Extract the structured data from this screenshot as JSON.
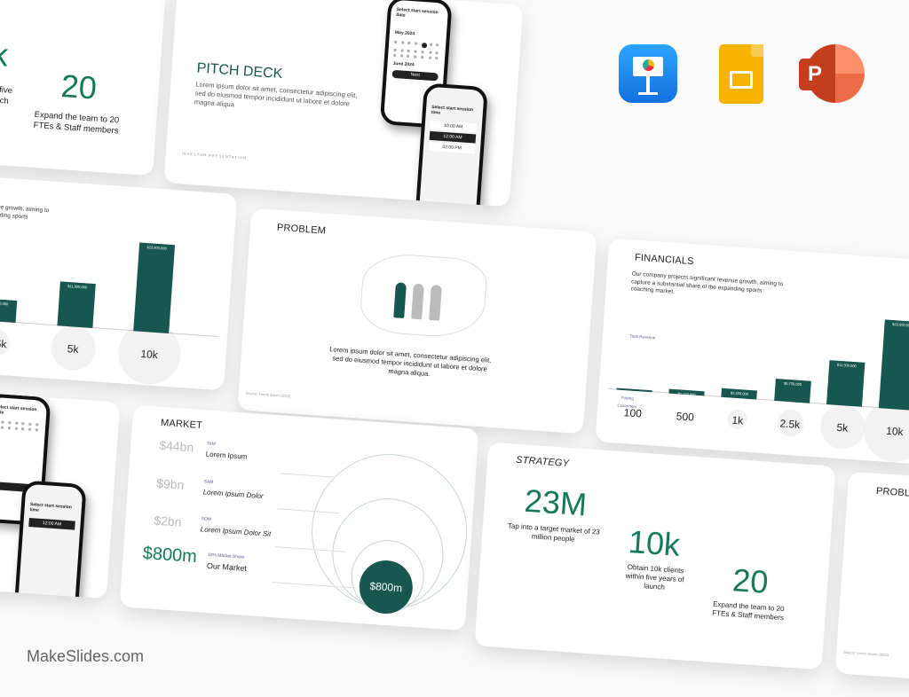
{
  "apps": {
    "keynote": {
      "icon": "keynote-icon",
      "color": "#1a8cf0"
    },
    "google_slides": {
      "icon": "google-slides-icon",
      "color": "#f6b400"
    },
    "powerpoint": {
      "icon": "powerpoint-icon",
      "color": "#d04423",
      "letter": "P"
    }
  },
  "watermark": "MakeSlides.com",
  "strategy_partial": {
    "big1": "k",
    "cap1": "clients within five years of launch",
    "big2": "20",
    "cap2": "Expand the team to 20 FTEs & Staff members"
  },
  "pitch": {
    "title": "PITCH DECK",
    "body": "Lorem ipsum dolor sit amet, consectetur adipiscing elit, sed do eiusmod tempor incididunt ut labore et dolore magna aliqua",
    "footer": "INVESTOR PRESENTATION",
    "phone1_title": "Select start session date",
    "phone1_month1": "May 2024",
    "phone1_month2": "June 2024",
    "phone1_button": "Next",
    "phone2_title": "Select start session time",
    "phone2_slots": [
      "10:00 AM",
      "12:00 AM",
      "02:00 PM"
    ]
  },
  "financials": {
    "title": "FINANCIALS",
    "body": "Our company projects significant revenue growth, aiming to capture a substantial share of the expanding sports coaching market.",
    "revenue_label": "Total Revenue",
    "customers_label": "Paying Customers",
    "accent": "#17574f",
    "customers": [
      "100",
      "500",
      "1k",
      "2.5k",
      "5k",
      "10k"
    ],
    "revenue": [
      230000,
      1150000,
      2300000,
      5750000,
      11500000,
      23000000
    ],
    "revenue_labels": [
      "$230,000",
      "$1,150,000",
      "$2,300,000",
      "$5,750,000",
      "$11,500,000",
      "$23,000,000"
    ]
  },
  "problem": {
    "title": "PROBLEM",
    "body": "Lorem ipsum dolor sit amet, consectetur adipiscing elit, sed do eiusmod tempor incididunt ut labore et dolore magna aliqua.",
    "source": "Source: Lorem ipsum (2024)"
  },
  "market": {
    "title": "MARKET",
    "rows": [
      {
        "value": "$44bn",
        "tag": "TAM",
        "name": "Lorem Ipsum"
      },
      {
        "value": "$9bn",
        "tag": "SAM",
        "name": "Lorem Ipsum Dolor"
      },
      {
        "value": "$2bn",
        "tag": "SOM",
        "name": "Lorem Ipsum Dolor Sit"
      },
      {
        "value": "$800m",
        "tag": "10% Market Share",
        "name": "Our Market"
      }
    ],
    "circle_label": "$800m"
  },
  "strategy": {
    "title": "STRATEGY",
    "items": [
      {
        "value": "23M",
        "caption": "Tap into a target market of 23 million people"
      },
      {
        "value": "10k",
        "caption": "Obtain 10k clients within five years of launch"
      },
      {
        "value": "20",
        "caption": "Expand the team to 20 FTEs & Staff members"
      }
    ]
  },
  "problem_partial": {
    "title": "PROBLEM",
    "source": "Source: Lorem Ipsum (2024)"
  }
}
